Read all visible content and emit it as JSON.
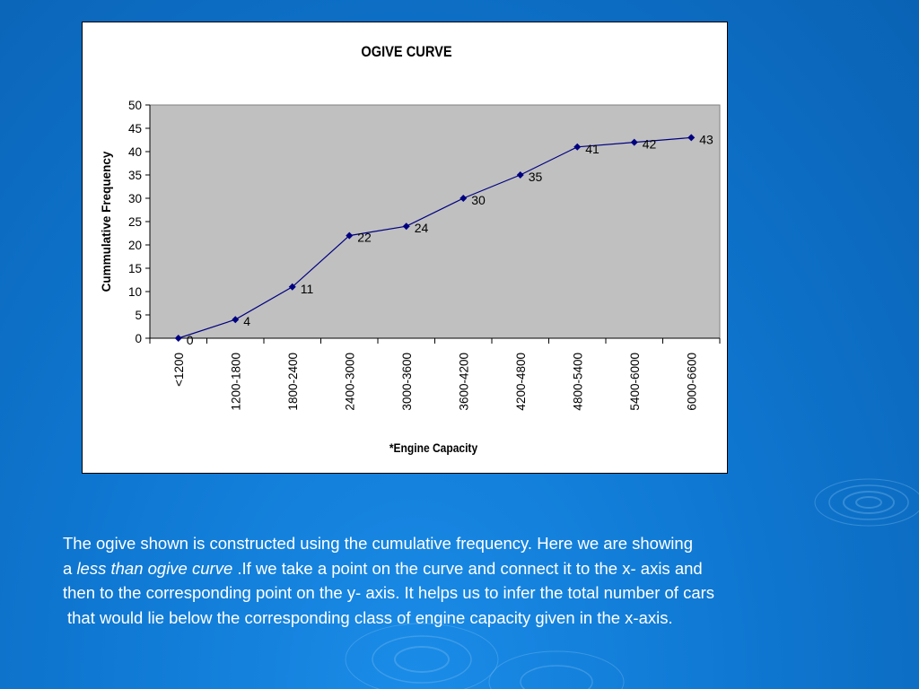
{
  "colors": {
    "background": "#0f78d2",
    "plot_area": "#c0c0c0",
    "series_line": "#000080",
    "marker": "#000080",
    "caption_text": "#ffffff"
  },
  "chart_data": {
    "type": "line",
    "title": "OGIVE CURVE",
    "xlabel": "*Engine Capacity",
    "ylabel": "Cummulative Frequency",
    "categories": [
      "<1200",
      "1200-1800",
      "1800-2400",
      "2400-3000",
      "3000-3600",
      "3600-4200",
      "4200-4800",
      "4800-5400",
      "5400-6000",
      "6000-6600"
    ],
    "series": [
      {
        "values": [
          0,
          4,
          11,
          22,
          24,
          30,
          35,
          41,
          42,
          43
        ]
      }
    ],
    "data_labels": [
      "0",
      "4",
      "11",
      "22",
      "24",
      "30",
      "35",
      "41",
      "42",
      "43"
    ],
    "ylim": [
      0,
      50
    ],
    "yticks": [
      "0",
      "5",
      "10",
      "15",
      "20",
      "25",
      "30",
      "35",
      "40",
      "45",
      "50"
    ],
    "marker": "diamond",
    "grid": false,
    "legend": "none"
  },
  "caption": {
    "line1": "The ogive shown is constructed using the cumulative frequency. Here we are showing",
    "line2_prefix": "a ",
    "line2_italic": "less than ogive curve",
    "line2_suffix": " .If we take a point on the curve and connect it to the x- axis and",
    "line3": "then to the corresponding point on the y- axis. It helps us to infer the total number of cars",
    "line4": "that would lie below the corresponding class of engine capacity given in the x-axis."
  }
}
